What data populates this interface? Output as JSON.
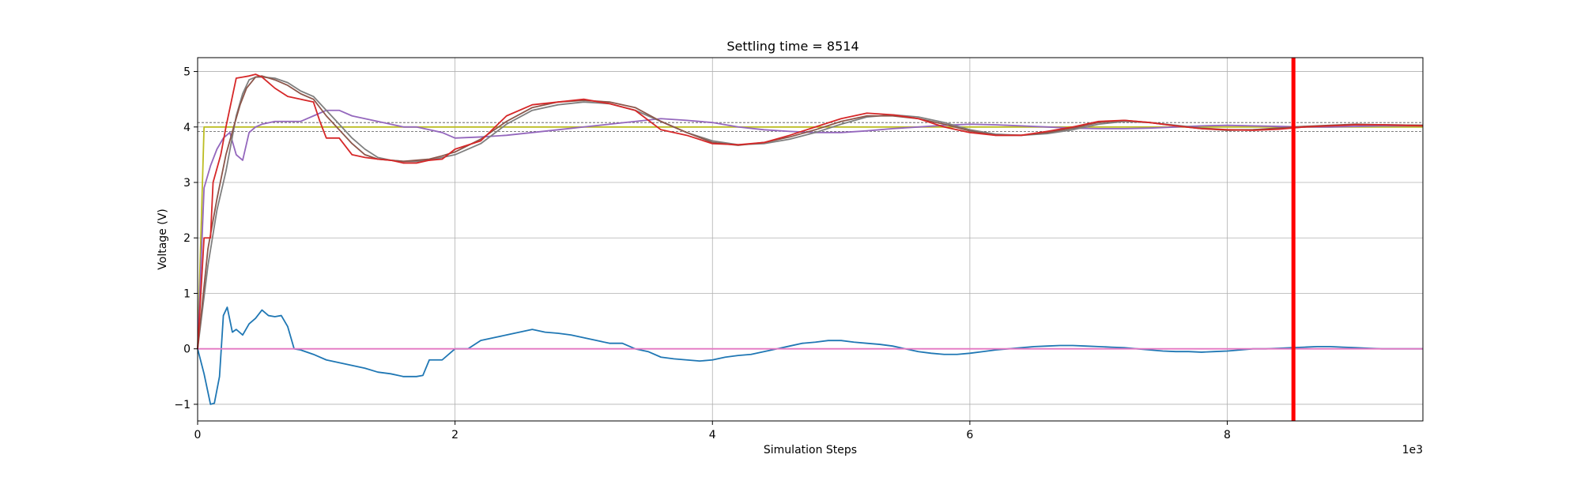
{
  "chart_data": {
    "type": "line",
    "title": "Settling time = 8514",
    "xlabel": "Simulation Steps",
    "ylabel": "Voltage (V)",
    "x_offset_text": "1e3",
    "xlim": [
      0,
      9.52
    ],
    "ylim": [
      -1.3,
      5.25
    ],
    "xticks": [
      0,
      2,
      4,
      6,
      8
    ],
    "xtick_labels": [
      "0",
      "2",
      "4",
      "6",
      "8"
    ],
    "yticks": [
      -1,
      0,
      1,
      2,
      3,
      4,
      5
    ],
    "ytick_labels": [
      "−1",
      "0",
      "1",
      "2",
      "3",
      "4",
      "5"
    ],
    "grid": true,
    "settling_marker": {
      "x": 8.514,
      "color": "#ff0000"
    },
    "tolerance_band": {
      "upper": 4.08,
      "lower": 3.92,
      "color": "#555555"
    },
    "colors": {
      "blue": "#1f77b4",
      "red": "#d62728",
      "purple": "#9467bd",
      "brown": "#8c564b",
      "gray": "#7f7f7f",
      "olive": "#bcbd22",
      "pink": "#e377c2"
    },
    "series": [
      {
        "color": "blue",
        "x": [
          0,
          0.05,
          0.1,
          0.13,
          0.17,
          0.2,
          0.23,
          0.27,
          0.3,
          0.35,
          0.4,
          0.45,
          0.5,
          0.55,
          0.6,
          0.65,
          0.7,
          0.75,
          0.8,
          0.9,
          1.0,
          1.1,
          1.2,
          1.3,
          1.4,
          1.5,
          1.6,
          1.7,
          1.75,
          1.8,
          1.9,
          2.0,
          2.1,
          2.2,
          2.3,
          2.4,
          2.5,
          2.6,
          2.7,
          2.8,
          2.9,
          3.0,
          3.1,
          3.2,
          3.3,
          3.4,
          3.5,
          3.6,
          3.7,
          3.8,
          3.9,
          4.0,
          4.1,
          4.2,
          4.3,
          4.4,
          4.5,
          4.6,
          4.7,
          4.8,
          4.9,
          5.0,
          5.1,
          5.2,
          5.3,
          5.4,
          5.5,
          5.6,
          5.7,
          5.8,
          5.9,
          6.0,
          6.1,
          6.2,
          6.3,
          6.4,
          6.5,
          6.6,
          6.7,
          6.8,
          6.9,
          7.0,
          7.1,
          7.2,
          7.3,
          7.4,
          7.5,
          7.6,
          7.7,
          7.8,
          7.9,
          8.0,
          8.1,
          8.2,
          8.3,
          8.4,
          8.5,
          8.6,
          8.7,
          8.8,
          8.9,
          9.0,
          9.1,
          9.2,
          9.3,
          9.4,
          9.52
        ],
        "y": [
          0,
          -0.45,
          -1.0,
          -0.98,
          -0.5,
          0.6,
          0.75,
          0.3,
          0.35,
          0.25,
          0.45,
          0.55,
          0.7,
          0.6,
          0.58,
          0.6,
          0.4,
          0.0,
          -0.02,
          -0.1,
          -0.2,
          -0.25,
          -0.3,
          -0.35,
          -0.42,
          -0.45,
          -0.5,
          -0.5,
          -0.48,
          -0.2,
          -0.2,
          0.0,
          0.0,
          0.15,
          0.2,
          0.25,
          0.3,
          0.35,
          0.3,
          0.28,
          0.25,
          0.2,
          0.15,
          0.1,
          0.1,
          0.0,
          -0.05,
          -0.15,
          -0.18,
          -0.2,
          -0.22,
          -0.2,
          -0.15,
          -0.12,
          -0.1,
          -0.05,
          0.0,
          0.05,
          0.1,
          0.12,
          0.15,
          0.15,
          0.12,
          0.1,
          0.08,
          0.05,
          0.0,
          -0.05,
          -0.08,
          -0.1,
          -0.1,
          -0.08,
          -0.05,
          -0.02,
          0.0,
          0.02,
          0.04,
          0.05,
          0.06,
          0.06,
          0.05,
          0.04,
          0.03,
          0.02,
          0.0,
          -0.02,
          -0.04,
          -0.05,
          -0.05,
          -0.06,
          -0.05,
          -0.04,
          -0.02,
          0.0,
          0.0,
          0.01,
          0.02,
          0.03,
          0.04,
          0.04,
          0.03,
          0.02,
          0.01,
          0.0,
          0.0,
          0.0,
          0.0
        ]
      },
      {
        "color": "pink",
        "x": [
          0,
          9.52
        ],
        "y": [
          0,
          0
        ]
      },
      {
        "color": "olive",
        "x": [
          0,
          0.05,
          9.52
        ],
        "y": [
          0,
          4.0,
          4.0
        ]
      },
      {
        "color": "purple",
        "x": [
          0,
          0.05,
          0.1,
          0.15,
          0.2,
          0.25,
          0.3,
          0.35,
          0.4,
          0.45,
          0.5,
          0.6,
          0.7,
          0.8,
          0.9,
          1.0,
          1.1,
          1.2,
          1.3,
          1.4,
          1.5,
          1.6,
          1.7,
          1.8,
          1.9,
          2.0,
          2.2,
          2.4,
          2.6,
          2.8,
          3.0,
          3.2,
          3.4,
          3.6,
          3.8,
          4.0,
          4.2,
          4.4,
          4.6,
          4.8,
          5.0,
          5.2,
          5.4,
          5.6,
          5.8,
          6.0,
          6.2,
          6.4,
          6.6,
          6.8,
          7.0,
          7.2,
          7.4,
          7.6,
          7.8,
          8.0,
          8.2,
          8.4,
          8.6,
          8.8,
          9.0,
          9.2,
          9.52
        ],
        "y": [
          0,
          2.9,
          3.3,
          3.6,
          3.8,
          3.9,
          3.5,
          3.4,
          3.9,
          4.0,
          4.05,
          4.1,
          4.1,
          4.1,
          4.2,
          4.3,
          4.3,
          4.2,
          4.15,
          4.1,
          4.05,
          4.0,
          4.0,
          3.95,
          3.9,
          3.8,
          3.82,
          3.85,
          3.9,
          3.95,
          4.0,
          4.05,
          4.1,
          4.15,
          4.12,
          4.08,
          4.0,
          3.95,
          3.92,
          3.9,
          3.9,
          3.93,
          3.97,
          4.0,
          4.03,
          4.05,
          4.04,
          4.02,
          4.0,
          3.98,
          3.97,
          3.97,
          3.98,
          4.0,
          4.02,
          4.03,
          4.02,
          4.01,
          4.0,
          4.0,
          4.01,
          4.02,
          4.02
        ]
      },
      {
        "color": "gray",
        "x": [
          0,
          0.08,
          0.15,
          0.22,
          0.3,
          0.35,
          0.4,
          0.45,
          0.5,
          0.6,
          0.7,
          0.8,
          0.9,
          1.0,
          1.1,
          1.2,
          1.3,
          1.4,
          1.5,
          1.6,
          1.7,
          1.8,
          1.9,
          2.0,
          2.2,
          2.4,
          2.6,
          2.8,
          3.0,
          3.2,
          3.4,
          3.6,
          3.8,
          4.0,
          4.2,
          4.4,
          4.6,
          4.8,
          5.0,
          5.2,
          5.4,
          5.6,
          5.8,
          6.0,
          6.2,
          6.4,
          6.6,
          6.8,
          7.0,
          7.2,
          7.4,
          7.6,
          7.8,
          8.0,
          8.2,
          8.4,
          8.6,
          8.8,
          9.0,
          9.2,
          9.52
        ],
        "y": [
          0,
          1.5,
          2.5,
          3.2,
          4.2,
          4.6,
          4.85,
          4.9,
          4.9,
          4.88,
          4.8,
          4.65,
          4.55,
          4.3,
          4.05,
          3.8,
          3.6,
          3.45,
          3.4,
          3.38,
          3.38,
          3.4,
          3.45,
          3.5,
          3.7,
          4.05,
          4.3,
          4.4,
          4.45,
          4.42,
          4.3,
          4.1,
          3.9,
          3.75,
          3.68,
          3.7,
          3.78,
          3.9,
          4.05,
          4.18,
          4.22,
          4.18,
          4.08,
          3.95,
          3.87,
          3.85,
          3.88,
          3.95,
          4.05,
          4.1,
          4.08,
          4.03,
          3.98,
          3.95,
          3.95,
          3.97,
          4.0,
          4.02,
          4.04,
          4.04,
          4.03
        ]
      },
      {
        "color": "brown",
        "x": [
          0,
          0.08,
          0.15,
          0.22,
          0.28,
          0.33,
          0.38,
          0.45,
          0.5,
          0.6,
          0.7,
          0.8,
          0.9,
          1.0,
          1.1,
          1.2,
          1.3,
          1.4,
          1.5,
          1.6,
          1.7,
          1.8,
          1.9,
          2.0,
          2.2,
          2.4,
          2.6,
          2.8,
          3.0,
          3.2,
          3.4,
          3.6,
          3.8,
          4.0,
          4.2,
          4.4,
          4.6,
          4.8,
          5.0,
          5.2,
          5.4,
          5.6,
          5.8,
          6.0,
          6.2,
          6.4,
          6.6,
          6.8,
          7.0,
          7.2,
          7.4,
          7.6,
          7.8,
          8.0,
          8.2,
          8.4,
          8.6,
          8.8,
          9.0,
          9.2,
          9.52
        ],
        "y": [
          0,
          1.8,
          2.7,
          3.5,
          4.0,
          4.4,
          4.7,
          4.9,
          4.92,
          4.85,
          4.75,
          4.6,
          4.5,
          4.2,
          3.95,
          3.7,
          3.5,
          3.42,
          3.4,
          3.38,
          3.4,
          3.42,
          3.48,
          3.55,
          3.78,
          4.1,
          4.35,
          4.45,
          4.48,
          4.45,
          4.35,
          4.1,
          3.9,
          3.72,
          3.67,
          3.72,
          3.82,
          3.95,
          4.1,
          4.2,
          4.2,
          4.15,
          4.05,
          3.93,
          3.85,
          3.85,
          3.9,
          3.98,
          4.08,
          4.12,
          4.08,
          4.02,
          3.97,
          3.94,
          3.95,
          3.98,
          4.01,
          4.03,
          4.05,
          4.04,
          4.03
        ]
      },
      {
        "color": "red",
        "x": [
          0,
          0.05,
          0.1,
          0.12,
          0.18,
          0.22,
          0.3,
          0.35,
          0.4,
          0.45,
          0.5,
          0.55,
          0.6,
          0.7,
          0.8,
          0.9,
          0.95,
          1.0,
          1.1,
          1.2,
          1.3,
          1.4,
          1.5,
          1.6,
          1.7,
          1.8,
          1.9,
          2.0,
          2.2,
          2.4,
          2.6,
          2.8,
          3.0,
          3.2,
          3.4,
          3.6,
          3.8,
          4.0,
          4.2,
          4.4,
          4.6,
          4.8,
          5.0,
          5.2,
          5.4,
          5.6,
          5.8,
          6.0,
          6.2,
          6.4,
          6.6,
          6.8,
          7.0,
          7.2,
          7.4,
          7.6,
          7.8,
          8.0,
          8.2,
          8.4,
          8.6,
          8.8,
          9.0,
          9.2,
          9.52
        ],
        "y": [
          0,
          2.0,
          2.0,
          3.0,
          3.5,
          4.0,
          4.88,
          4.9,
          4.92,
          4.95,
          4.9,
          4.8,
          4.7,
          4.55,
          4.5,
          4.45,
          4.1,
          3.8,
          3.8,
          3.5,
          3.45,
          3.42,
          3.4,
          3.35,
          3.35,
          3.4,
          3.42,
          3.6,
          3.75,
          4.2,
          4.4,
          4.45,
          4.5,
          4.42,
          4.3,
          3.95,
          3.85,
          3.7,
          3.68,
          3.72,
          3.85,
          4.0,
          4.15,
          4.25,
          4.22,
          4.15,
          4.0,
          3.9,
          3.85,
          3.85,
          3.92,
          4.0,
          4.1,
          4.12,
          4.08,
          4.02,
          3.97,
          3.95,
          3.94,
          3.96,
          4.0,
          4.02,
          4.04,
          4.04,
          4.02
        ]
      }
    ]
  }
}
